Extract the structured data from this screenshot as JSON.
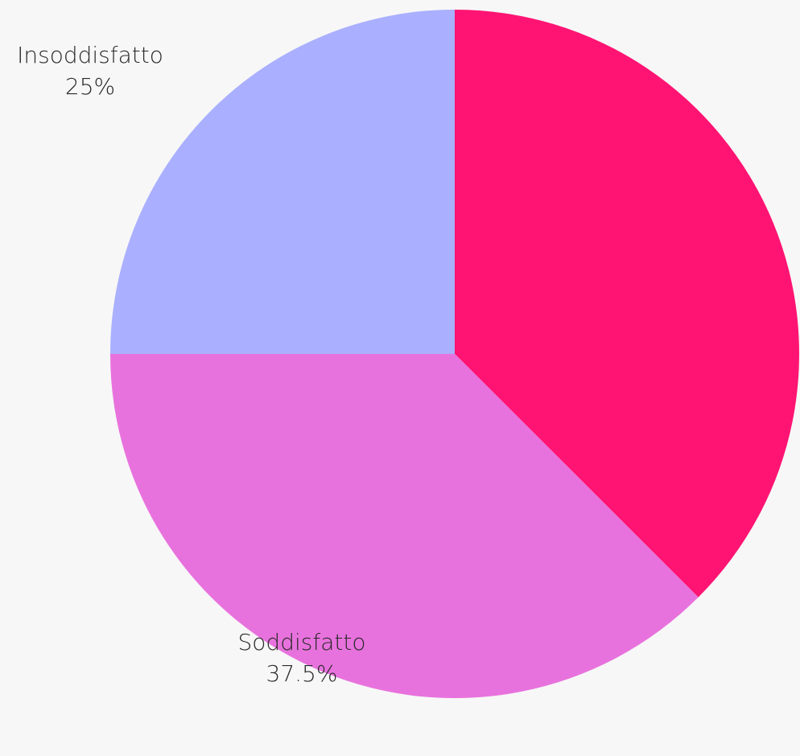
{
  "chart_data": {
    "type": "pie",
    "slices": [
      {
        "label": "",
        "value": 37.5,
        "percent_label": "",
        "color": "#FF1473"
      },
      {
        "label": "Soddisfatto",
        "value": 37.5,
        "percent_label": "37.5%",
        "color": "#E872DD"
      },
      {
        "label": "Insoddisfatto",
        "value": 25,
        "percent_label": "25%",
        "color": "#AAB0FF"
      }
    ],
    "start_angle_deg": 0,
    "direction": "clockwise",
    "background_color": "#f7f7f7"
  }
}
